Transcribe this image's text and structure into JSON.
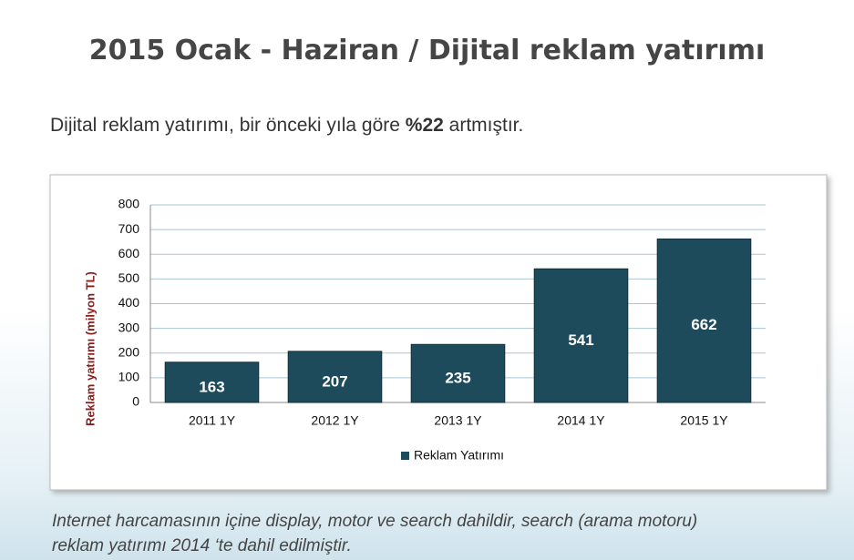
{
  "header": {
    "title": "2015 Ocak - Haziran / Dijital reklam yatırımı"
  },
  "subtitle": {
    "parts": [
      "Dijital reklam yatırımı, bir önceki yıla göre",
      "%22",
      "artmıştır."
    ]
  },
  "chart_data": {
    "type": "bar",
    "y_label": "Reklam yatırımı (milyon TL)",
    "categories": [
      "2011 1Y",
      "2012 1Y",
      "2013 1Y",
      "2014 1Y",
      "2015 1Y"
    ],
    "series": [
      {
        "name": "Reklam Yatırımı",
        "color": "#1e4b5b",
        "values": [
          163,
          207,
          235,
          541,
          662
        ]
      }
    ],
    "ylim": [
      0,
      800
    ],
    "yticks": [
      0,
      100,
      200,
      300,
      400,
      500,
      600,
      700,
      800
    ],
    "grid": true,
    "legend": "bottom"
  },
  "footnote": {
    "lines": [
      "Internet harcamasının içine display, motor ve search dahildir, search (arama motoru)",
      "reklam yatırımı 2014 ‘te dahil edilmiştir."
    ]
  }
}
